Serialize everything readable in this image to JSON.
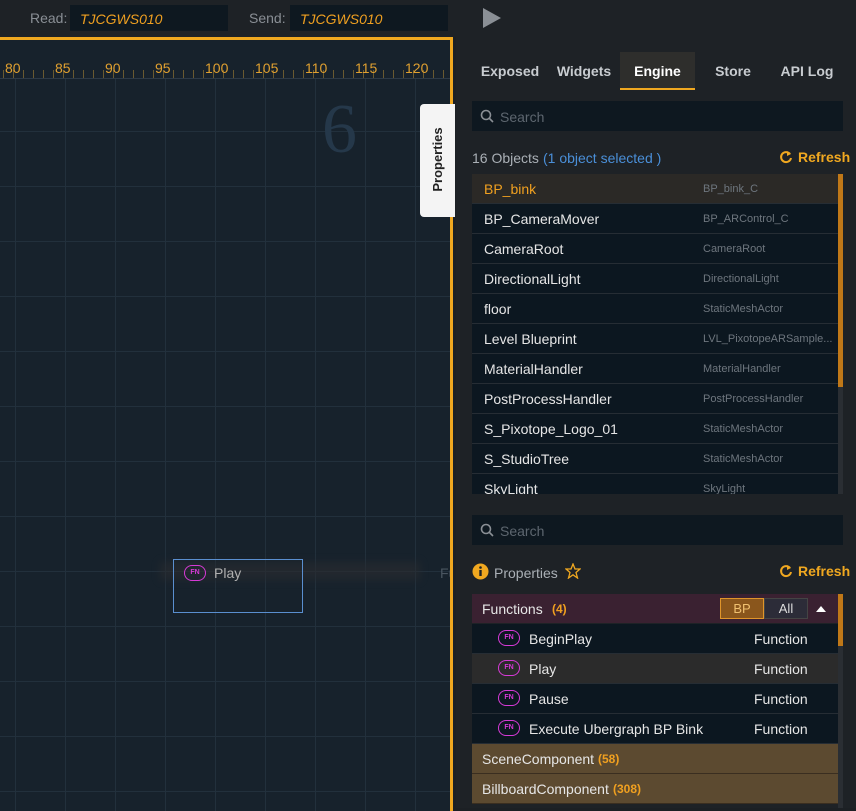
{
  "top_bar": {
    "read_label": "Read:",
    "read_value": "TJCGWS010",
    "send_label": "Send:",
    "send_value": "TJCGWS010"
  },
  "canvas": {
    "ruler": [
      80,
      85,
      90,
      95,
      100,
      105,
      110,
      115,
      120
    ],
    "big_number": "6",
    "side_tab": "Properties",
    "node": {
      "icon": "FN",
      "label": "Play"
    },
    "faded_label": "Func"
  },
  "tabs": [
    "Exposed",
    "Widgets",
    "Engine",
    "Store",
    "API Log"
  ],
  "active_tab": 2,
  "objects": {
    "search_placeholder": "Search",
    "count": "16 Objects",
    "selection": "(1 object selected )",
    "refresh": "Refresh",
    "selected_index": 0,
    "rows": [
      {
        "name": "BP_bink",
        "class": "BP_bink_C"
      },
      {
        "name": "BP_CameraMover",
        "class": "BP_ARControl_C"
      },
      {
        "name": "CameraRoot",
        "class": "CameraRoot"
      },
      {
        "name": "DirectionalLight",
        "class": "DirectionalLight"
      },
      {
        "name": "floor",
        "class": "StaticMeshActor"
      },
      {
        "name": "Level Blueprint",
        "class": "LVL_PixotopeARSample..."
      },
      {
        "name": "MaterialHandler",
        "class": "MaterialHandler"
      },
      {
        "name": "PostProcessHandler",
        "class": "PostProcessHandler"
      },
      {
        "name": "S_Pixotope_Logo_01",
        "class": "StaticMeshActor"
      },
      {
        "name": "S_StudioTree",
        "class": "StaticMeshActor"
      },
      {
        "name": "SkyLight",
        "class": "SkyLight"
      }
    ]
  },
  "properties": {
    "search_placeholder": "Search",
    "title": "Properties",
    "refresh": "Refresh",
    "functions": {
      "name": "Functions",
      "count": "(4)",
      "filters": [
        "BP",
        "All"
      ],
      "active_filter": 0,
      "highlighted_item": 1,
      "items": [
        {
          "icon": "FN",
          "name": "BeginPlay",
          "kind": "Function"
        },
        {
          "icon": "FN",
          "name": "Play",
          "kind": "Function"
        },
        {
          "icon": "FN",
          "name": "Pause",
          "kind": "Function"
        },
        {
          "icon": "FN",
          "name": "Execute Ubergraph BP Bink",
          "kind": "Function"
        }
      ]
    },
    "sections": [
      {
        "name": "SceneComponent",
        "count": "(58)"
      },
      {
        "name": "BillboardComponent",
        "count": "(308)"
      }
    ]
  }
}
